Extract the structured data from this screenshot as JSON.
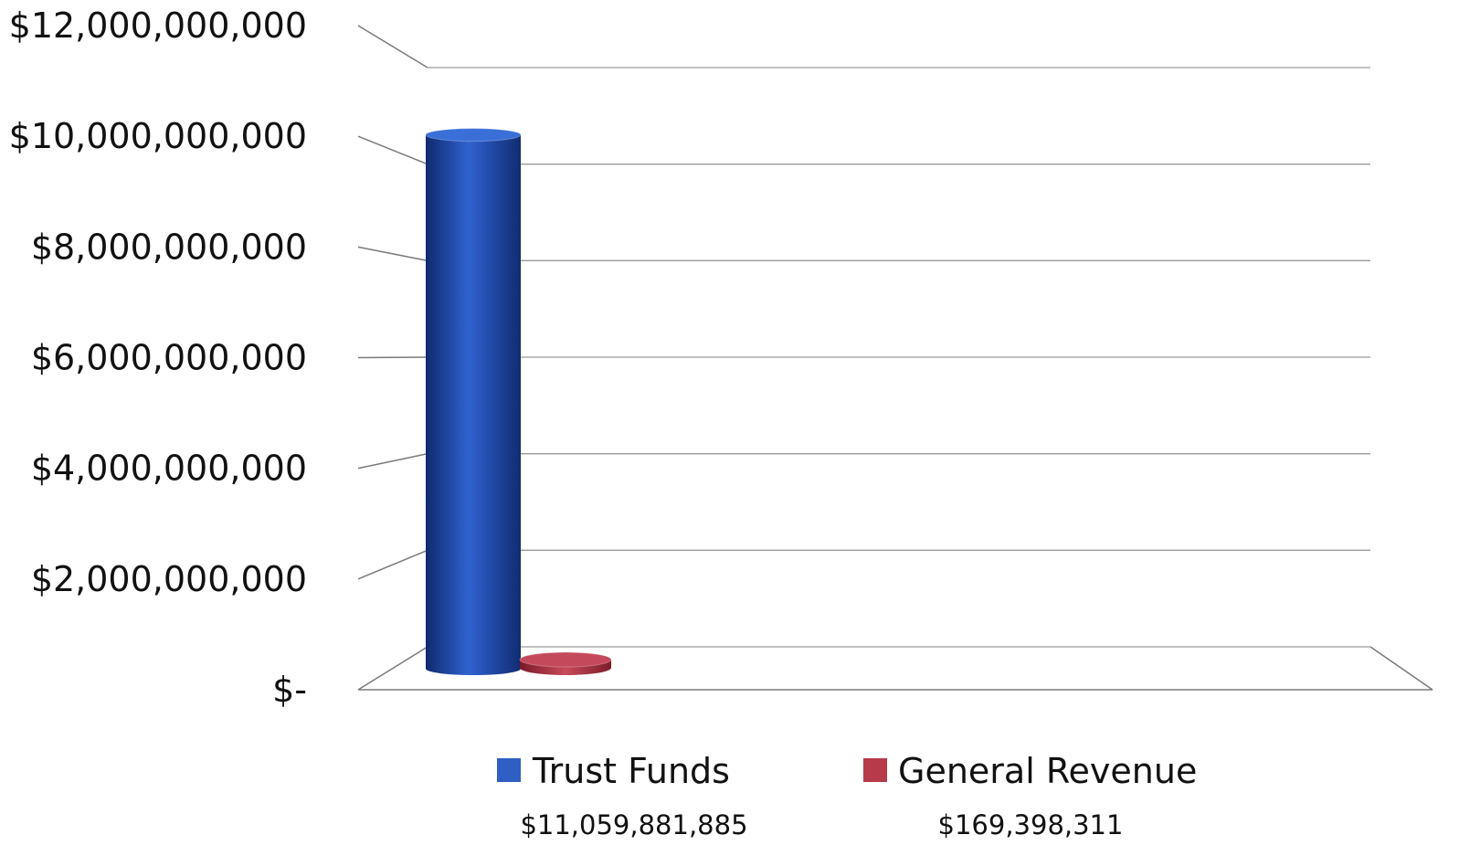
{
  "chart_data": {
    "type": "bar",
    "categories": [
      ""
    ],
    "series": [
      {
        "name": "Trust Funds",
        "values": [
          11059881885
        ],
        "value_label": "$11,059,881,885",
        "color": "#2f5fc4"
      },
      {
        "name": "General Revenue",
        "values": [
          169398311
        ],
        "value_label": "$169,398,311",
        "color": "#b63a4a"
      }
    ],
    "title": "",
    "xlabel": "",
    "ylabel": "",
    "ylim": [
      0,
      12000000000
    ],
    "yticks": [
      0,
      2000000000,
      4000000000,
      6000000000,
      8000000000,
      10000000000,
      12000000000
    ],
    "ytick_labels": [
      "$-",
      "$2,000,000,000",
      "$4,000,000,000",
      "$6,000,000,000",
      "$8,000,000,000",
      "$10,000,000,000",
      "$12,000,000,000"
    ],
    "grid": true,
    "style": "3d-cylinder",
    "legend_position": "bottom"
  }
}
